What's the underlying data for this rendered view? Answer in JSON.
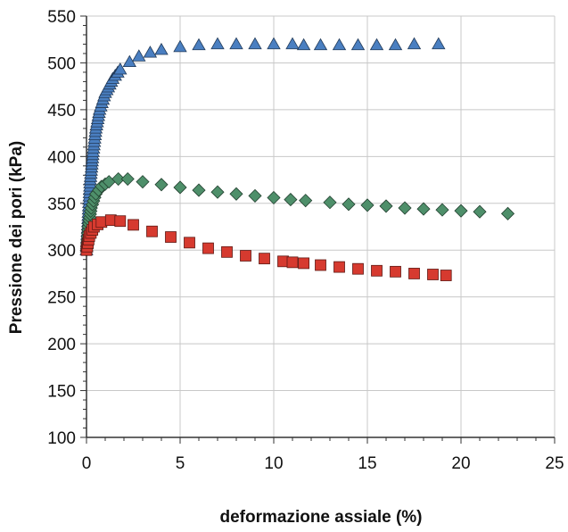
{
  "chart_data": {
    "type": "scatter",
    "title": "",
    "xlabel": "deformazione assiale (%)",
    "ylabel": "Pressione dei pori (kPa)",
    "xlim": [
      0,
      25
    ],
    "ylim": [
      100,
      550
    ],
    "xticks": [
      0,
      5,
      10,
      15,
      20,
      25
    ],
    "yticks": [
      100,
      150,
      200,
      250,
      300,
      350,
      400,
      450,
      500,
      550
    ],
    "grid": true,
    "legend": "none",
    "series": [
      {
        "marker": "triangle",
        "color": "#4a7fc1",
        "points": [
          [
            0.0,
            300
          ],
          [
            0.1,
            340
          ],
          [
            0.2,
            375
          ],
          [
            0.35,
            405
          ],
          [
            0.5,
            430
          ],
          [
            0.7,
            450
          ],
          [
            1.0,
            468
          ],
          [
            1.4,
            483
          ],
          [
            1.8,
            493
          ],
          [
            2.3,
            501
          ],
          [
            2.8,
            507
          ],
          [
            3.4,
            511
          ],
          [
            4.0,
            514
          ],
          [
            5.0,
            517
          ],
          [
            6.0,
            519
          ],
          [
            7.0,
            520
          ],
          [
            8.0,
            520
          ],
          [
            9.0,
            520
          ],
          [
            10.0,
            520
          ],
          [
            11.0,
            520
          ],
          [
            11.6,
            519
          ],
          [
            12.5,
            519
          ],
          [
            13.5,
            519
          ],
          [
            14.5,
            519
          ],
          [
            15.5,
            519
          ],
          [
            16.5,
            519
          ],
          [
            17.5,
            520
          ],
          [
            18.8,
            520
          ]
        ]
      },
      {
        "marker": "diamond",
        "color": "#4e8f6a",
        "points": [
          [
            0.0,
            300
          ],
          [
            0.1,
            325
          ],
          [
            0.25,
            345
          ],
          [
            0.5,
            360
          ],
          [
            0.8,
            368
          ],
          [
            1.2,
            373
          ],
          [
            1.7,
            376
          ],
          [
            2.2,
            376
          ],
          [
            3.0,
            373
          ],
          [
            4.0,
            370
          ],
          [
            5.0,
            367
          ],
          [
            6.0,
            364
          ],
          [
            7.0,
            362
          ],
          [
            8.0,
            360
          ],
          [
            9.0,
            358
          ],
          [
            10.0,
            356
          ],
          [
            10.9,
            354
          ],
          [
            11.7,
            353
          ],
          [
            13.0,
            351
          ],
          [
            14.0,
            349
          ],
          [
            15.0,
            348
          ],
          [
            16.0,
            347
          ],
          [
            17.0,
            345
          ],
          [
            18.0,
            344
          ],
          [
            19.0,
            343
          ],
          [
            20.0,
            342
          ],
          [
            21.0,
            341
          ],
          [
            22.5,
            339
          ]
        ]
      },
      {
        "marker": "square",
        "color": "#d63a2f",
        "points": [
          [
            0.0,
            300
          ],
          [
            0.15,
            315
          ],
          [
            0.4,
            325
          ],
          [
            0.8,
            330
          ],
          [
            1.3,
            332
          ],
          [
            1.8,
            331
          ],
          [
            2.5,
            327
          ],
          [
            3.5,
            320
          ],
          [
            4.5,
            314
          ],
          [
            5.5,
            308
          ],
          [
            6.5,
            302
          ],
          [
            7.5,
            298
          ],
          [
            8.5,
            294
          ],
          [
            9.5,
            291
          ],
          [
            10.5,
            288
          ],
          [
            11.0,
            287
          ],
          [
            11.6,
            286
          ],
          [
            12.5,
            284
          ],
          [
            13.5,
            282
          ],
          [
            14.5,
            280
          ],
          [
            15.5,
            278
          ],
          [
            16.5,
            277
          ],
          [
            17.5,
            275
          ],
          [
            18.5,
            274
          ],
          [
            19.2,
            273
          ]
        ]
      }
    ]
  }
}
